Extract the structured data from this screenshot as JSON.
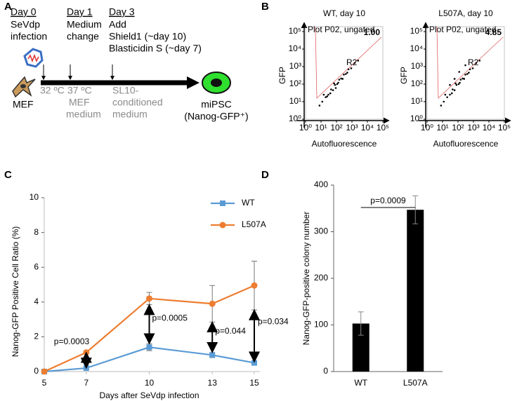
{
  "panel_labels": [
    "A",
    "B",
    "C",
    "D"
  ],
  "panel_a": {
    "steps": [
      {
        "day": "Day 0",
        "lines": [
          "SeVdp",
          "infection"
        ]
      },
      {
        "day": "Day 1",
        "lines": [
          "Medium",
          "change"
        ]
      },
      {
        "day": "Day 3",
        "lines": [
          "Add",
          "Shield1 (~day 10)",
          "Blasticidin S (~day 7)"
        ]
      }
    ],
    "start_cell": "MEF",
    "conditions": [
      "32 ºC",
      "37 ºC",
      "MEF",
      "medium",
      "SL10-",
      "conditioned",
      "medium"
    ],
    "end_cell": [
      "miPSC",
      "(Nanog-GFP⁺)"
    ]
  },
  "chart_data": [
    {
      "type": "scatter",
      "title": "WT, day 10",
      "note": "Plot P02, ungated",
      "gate_label": "R2",
      "gate_value": "1.00",
      "x_label": "Autofluorescence",
      "y_label": "GFP",
      "xscale": "log",
      "yscale": "log",
      "color": "#000000",
      "x": [
        8,
        12,
        20,
        30,
        45,
        60,
        80,
        110,
        150,
        200,
        300,
        400,
        600,
        900,
        1500,
        2500,
        15,
        40,
        70,
        130,
        250,
        500,
        25,
        90
      ],
      "y": [
        6,
        10,
        18,
        25,
        50,
        45,
        90,
        100,
        180,
        210,
        350,
        380,
        700,
        800,
        1600,
        2200,
        25,
        30,
        110,
        120,
        200,
        450,
        20,
        60
      ],
      "xlim": [
        1,
        100000
      ],
      "ylim": [
        1,
        100000
      ],
      "xticks": [
        {
          "value": 1,
          "label": "10⁰"
        },
        {
          "value": 10,
          "label": "10¹"
        },
        {
          "value": 100,
          "label": "10²"
        },
        {
          "value": 1000,
          "label": "10³"
        },
        {
          "value": 10000,
          "label": "10⁴"
        },
        {
          "value": 100000,
          "label": "10⁵"
        }
      ],
      "yticks": [
        {
          "value": 1,
          "label": "10⁰"
        },
        {
          "value": 10,
          "label": "10¹"
        },
        {
          "value": 100,
          "label": "10²"
        },
        {
          "value": 1000,
          "label": "10³"
        },
        {
          "value": 10000,
          "label": "10⁴"
        },
        {
          "value": 100000,
          "label": "10⁵"
        }
      ]
    },
    {
      "type": "scatter",
      "title": "L507A, day 10",
      "note": "Plot P02, ungated",
      "gate_label": "R2",
      "gate_value": "4.85",
      "x_label": "Autofluorescence",
      "y_label": "GFP",
      "xscale": "log",
      "yscale": "log",
      "color": "#000000",
      "x": [
        8,
        12,
        20,
        30,
        45,
        60,
        80,
        110,
        150,
        200,
        300,
        400,
        600,
        900,
        1500,
        2500,
        15,
        40,
        70,
        130,
        250,
        500,
        30,
        60,
        120,
        300
      ],
      "y": [
        6,
        10,
        18,
        25,
        50,
        45,
        90,
        100,
        180,
        210,
        350,
        380,
        700,
        800,
        1600,
        2200,
        25,
        30,
        110,
        120,
        200,
        450,
        90,
        200,
        500,
        1200
      ],
      "xlim": [
        1,
        100000
      ],
      "ylim": [
        1,
        100000
      ],
      "xticks": [
        {
          "value": 1,
          "label": "10⁰"
        },
        {
          "value": 10,
          "label": "10¹"
        },
        {
          "value": 100,
          "label": "10²"
        },
        {
          "value": 1000,
          "label": "10³"
        },
        {
          "value": 10000,
          "label": "10⁴"
        },
        {
          "value": 100000,
          "label": "10⁵"
        }
      ],
      "yticks": [
        {
          "value": 1,
          "label": "10⁰"
        },
        {
          "value": 10,
          "label": "10¹"
        },
        {
          "value": 100,
          "label": "10²"
        },
        {
          "value": 1000,
          "label": "10³"
        },
        {
          "value": 10000,
          "label": "10⁴"
        },
        {
          "value": 100000,
          "label": "10⁵"
        }
      ]
    },
    {
      "type": "line",
      "x_label": "Days after SeVdp infection",
      "y_label": "Nanog-GFP Positive Cell Ratio (%)",
      "x": [
        5,
        7,
        10,
        13,
        15
      ],
      "xlim": [
        5,
        15
      ],
      "xticks": [
        5,
        7,
        10,
        13,
        15
      ],
      "ylim": [
        0,
        10
      ],
      "yticks": [
        0,
        2,
        4,
        6,
        8,
        10
      ],
      "legend": "top-right",
      "series": [
        {
          "name": "WT",
          "color": "#5b9bd5",
          "marker": "square",
          "values": [
            0,
            0.2,
            1.4,
            0.95,
            0.5
          ],
          "errors": [
            0,
            0.05,
            0.2,
            0.15,
            0.05
          ]
        },
        {
          "name": "L507A",
          "color": "#ed7d31",
          "marker": "circle",
          "values": [
            0,
            1.1,
            4.2,
            3.9,
            4.95
          ],
          "errors": [
            0,
            0.05,
            0.35,
            1.05,
            1.4
          ]
        }
      ],
      "p_values": [
        "p=0.0003",
        "p=0.0005",
        "p=0.044",
        "p=0.034"
      ]
    },
    {
      "type": "bar",
      "y_label": "Nanog-GFP-positive colony number",
      "categories": [
        "WT",
        "L507A"
      ],
      "values": [
        103,
        347
      ],
      "errors": [
        25,
        30
      ],
      "color": "#000000",
      "ylim": [
        0,
        400
      ],
      "yticks": [
        0,
        100,
        200,
        300,
        400
      ],
      "significance": "p=0.0009"
    }
  ]
}
